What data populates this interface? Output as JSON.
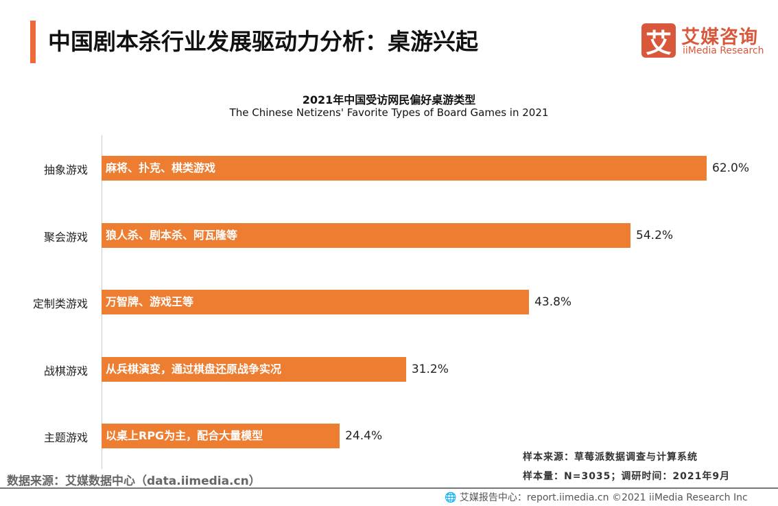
{
  "header": {
    "title": "中国剧本杀行业发展驱动力分析：桌游兴起",
    "logo_mark": "艾",
    "logo_cn": "艾媒咨询",
    "logo_en": "iiMedia Research"
  },
  "chart_data": {
    "type": "bar",
    "orientation": "horizontal",
    "title": "2021年中国受访网民偏好桌游类型",
    "subtitle": "The Chinese Netizens' Favorite Types of Board Games in 2021",
    "categories": [
      "抽象游戏",
      "聚会游戏",
      "定制类游戏",
      "战棋游戏",
      "主题游戏"
    ],
    "bar_labels": [
      "麻将、扑克、棋类游戏",
      "狼人杀、剧本杀、阿瓦隆等",
      "万智牌、游戏王等",
      "从兵棋演变，通过棋盘还原战争实况",
      "以桌上RPG为主，配合大量模型"
    ],
    "values": [
      62.0,
      54.2,
      43.8,
      31.2,
      24.4
    ],
    "value_labels": [
      "62.0%",
      "54.2%",
      "43.8%",
      "31.2%",
      "24.4%"
    ],
    "unit": "%",
    "xlim": [
      0,
      62
    ],
    "color": "#ed7d31",
    "grid": false
  },
  "notes": {
    "sample_source": "样本来源：草莓派数据调查与计算系统",
    "sample_size": "样本量：N=3035；调研时间：2021年9月"
  },
  "source": "数据来源：艾媒数据中心（data.iimedia.cn）",
  "footer": "艾媒报告中心：report.iimedia.cn   ©2021  iiMedia Research  Inc",
  "icons": {
    "footer": "globe-icon"
  }
}
